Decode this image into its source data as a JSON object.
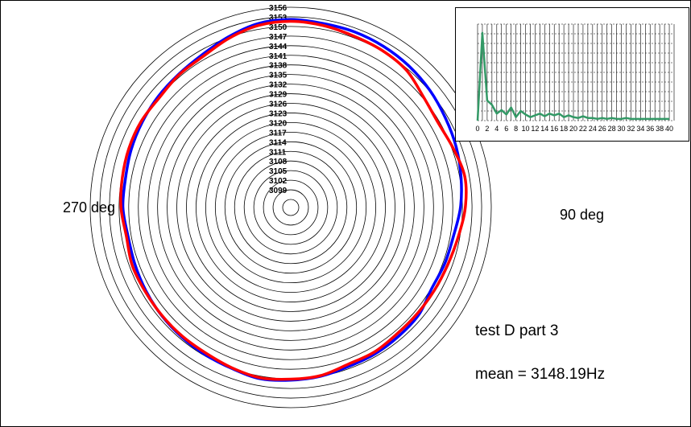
{
  "chart_data": [
    {
      "type": "polar_line",
      "center_hz": 3099,
      "ring_step_hz": 3,
      "rings_hz": [
        3099,
        3102,
        3105,
        3108,
        3111,
        3114,
        3117,
        3120,
        3123,
        3126,
        3129,
        3132,
        3135,
        3138,
        3141,
        3144,
        3147,
        3150,
        3153,
        3156
      ],
      "rlim": [
        3096,
        3156
      ],
      "series": [
        {
          "color": "#0000ff",
          "angle_deg": [
            0,
            10,
            20,
            30,
            40,
            50,
            60,
            70,
            80,
            90,
            100,
            110,
            120,
            130,
            140,
            150,
            160,
            170,
            180,
            190,
            200,
            210,
            220,
            230,
            240,
            250,
            260,
            270,
            280,
            290,
            300,
            310,
            320,
            330,
            340,
            350
          ],
          "values_hz": [
            3152.2,
            3151.8,
            3151.8,
            3151.5,
            3151.0,
            3150.2,
            3149.2,
            3148.4,
            3147.4,
            3146.4,
            3145.0,
            3144.6,
            3144.2,
            3145.6,
            3145.9,
            3146.2,
            3146.3,
            3147.0,
            3147.4,
            3147.8,
            3147.0,
            3146.6,
            3146.3,
            3146.0,
            3145.6,
            3145.2,
            3145.0,
            3145.8,
            3145.8,
            3146.4,
            3146.9,
            3147.4,
            3147.8,
            3148.6,
            3150.2,
            3151.8
          ]
        },
        {
          "color": "#ff0000",
          "angle_deg": [
            0,
            10,
            20,
            30,
            40,
            50,
            60,
            70,
            80,
            90,
            100,
            110,
            120,
            130,
            140,
            150,
            160,
            170,
            180,
            190,
            200,
            210,
            220,
            230,
            240,
            250,
            260,
            270,
            280,
            290,
            300,
            310,
            320,
            330,
            340,
            350
          ],
          "values_hz": [
            3151.6,
            3151.2,
            3150.5,
            3150.2,
            3149.5,
            3147.4,
            3146.5,
            3147.4,
            3148.6,
            3147.9,
            3146.5,
            3145.6,
            3145.2,
            3145.0,
            3145.0,
            3145.6,
            3145.6,
            3146.8,
            3147.1,
            3147.5,
            3146.8,
            3146.1,
            3146.0,
            3145.9,
            3145.9,
            3146.1,
            3145.5,
            3146.4,
            3146.8,
            3147.2,
            3147.3,
            3146.9,
            3147.6,
            3148.0,
            3149.7,
            3151.2
          ]
        }
      ],
      "annotations": [
        "270 deg",
        "90 deg",
        "test D part 3",
        "mean = 3148.19Hz"
      ]
    },
    {
      "type": "line",
      "x_ticks": [
        0,
        2,
        4,
        6,
        8,
        10,
        12,
        14,
        16,
        18,
        20,
        22,
        24,
        26,
        28,
        30,
        32,
        34,
        36,
        38,
        40
      ],
      "x": [
        0,
        1,
        2,
        3,
        4,
        5,
        6,
        7,
        8,
        9,
        10,
        11,
        12,
        13,
        14,
        15,
        16,
        17,
        18,
        19,
        20,
        21,
        22,
        23,
        24,
        25,
        26,
        27,
        28,
        29,
        30,
        31,
        32,
        33,
        34,
        35,
        36,
        37,
        38,
        39,
        40
      ],
      "values": [
        0,
        100,
        23,
        18,
        8,
        12,
        7,
        15,
        4,
        11,
        7,
        4,
        6,
        8,
        5,
        8,
        6,
        8,
        4,
        6,
        4,
        3,
        5,
        3,
        3,
        2,
        3,
        2,
        3,
        2,
        2,
        3,
        2,
        2,
        2,
        2,
        2,
        2,
        2,
        2,
        2
      ],
      "color": "#339966",
      "xlim": [
        0,
        41
      ],
      "ylim": [
        0,
        110
      ],
      "grid": true
    }
  ]
}
